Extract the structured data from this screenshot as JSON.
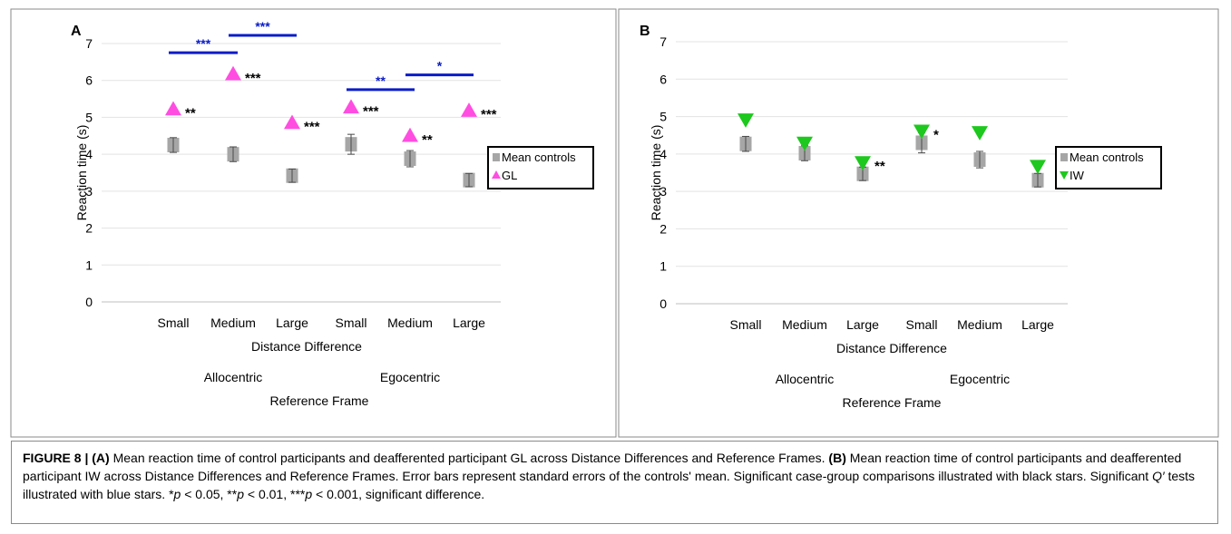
{
  "chart_data": [
    {
      "type": "scatter",
      "panel_label": "A",
      "ylabel": "Reaction time (s)",
      "ylim": [
        0,
        7
      ],
      "yticks": [
        "0",
        "1",
        "2",
        "3",
        "4",
        "5",
        "6",
        "7"
      ],
      "categories": [
        "Small",
        "Medium",
        "Large",
        "Small",
        "Medium",
        "Large"
      ],
      "xlabel": "Distance Difference",
      "groups": [
        "Allocentric",
        "Egocentric"
      ],
      "group_label": "Reference Frame",
      "series": [
        {
          "name": "Mean controls",
          "marker": "square",
          "color": "#a6a6a6",
          "values": [
            4.25,
            4.0,
            3.42,
            4.27,
            3.88,
            3.3
          ],
          "errors": [
            0.2,
            0.2,
            0.18,
            0.27,
            0.22,
            0.18
          ]
        },
        {
          "name": "GL",
          "marker": "triangle-up",
          "color": "#ff4de1",
          "values": [
            5.22,
            6.17,
            4.85,
            5.27,
            4.5,
            5.18
          ],
          "stars": [
            "**",
            "***",
            "***",
            "***",
            "**",
            "***"
          ]
        }
      ],
      "comparisons": [
        {
          "from": 0,
          "to": 1,
          "y": 6.75,
          "label": "***"
        },
        {
          "from": 1,
          "to": 2,
          "y": 7.22,
          "label": "***"
        },
        {
          "from": 3,
          "to": 4,
          "y": 5.75,
          "label": "**"
        },
        {
          "from": 4,
          "to": 5,
          "y": 6.15,
          "label": "*"
        }
      ],
      "comparison_color": "#0a1cc8",
      "legend_position": "right"
    },
    {
      "type": "scatter",
      "panel_label": "B",
      "ylabel": "Reaction time (s)",
      "ylim": [
        0,
        7
      ],
      "yticks": [
        "0",
        "1",
        "2",
        "3",
        "4",
        "5",
        "6",
        "7"
      ],
      "categories": [
        "Small",
        "Medium",
        "Large",
        "Small",
        "Medium",
        "Large"
      ],
      "xlabel": "Distance Difference",
      "groups": [
        "Allocentric",
        "Egocentric"
      ],
      "group_label": "Reference Frame",
      "series": [
        {
          "name": "Mean controls",
          "marker": "square",
          "color": "#a6a6a6",
          "values": [
            4.27,
            4.02,
            3.47,
            4.3,
            3.85,
            3.3
          ],
          "errors": [
            0.2,
            0.2,
            0.18,
            0.27,
            0.22,
            0.18
          ]
        },
        {
          "name": "IW",
          "marker": "triangle-down",
          "color": "#1ec81e",
          "values": [
            4.92,
            4.3,
            3.78,
            4.62,
            4.58,
            3.68
          ],
          "stars": [
            "",
            "",
            "**",
            "*",
            "",
            ""
          ]
        }
      ],
      "comparisons": [],
      "legend_position": "right"
    }
  ],
  "caption": {
    "fig": "FIGURE 8 | ",
    "a": "(A)",
    "t1": " Mean reaction time of control participants and deafferented participant GL across Distance Differences and Reference Frames. ",
    "b": "(B)",
    "t2": " Mean reaction time of control participants and deafferented participant IW across Distance Differences and Reference Frames. Error bars represent standard errors of the controls' mean. Significant case-group comparisons illustrated with black stars. Significant ",
    "q": "Q′",
    "t3": " tests illustrated with blue stars. *",
    "p1": "p",
    "t4": " < 0.05, **",
    "p2": "p",
    "t5": " < 0.01, ***",
    "p3": "p",
    "t6": " < 0.001, significant difference."
  }
}
